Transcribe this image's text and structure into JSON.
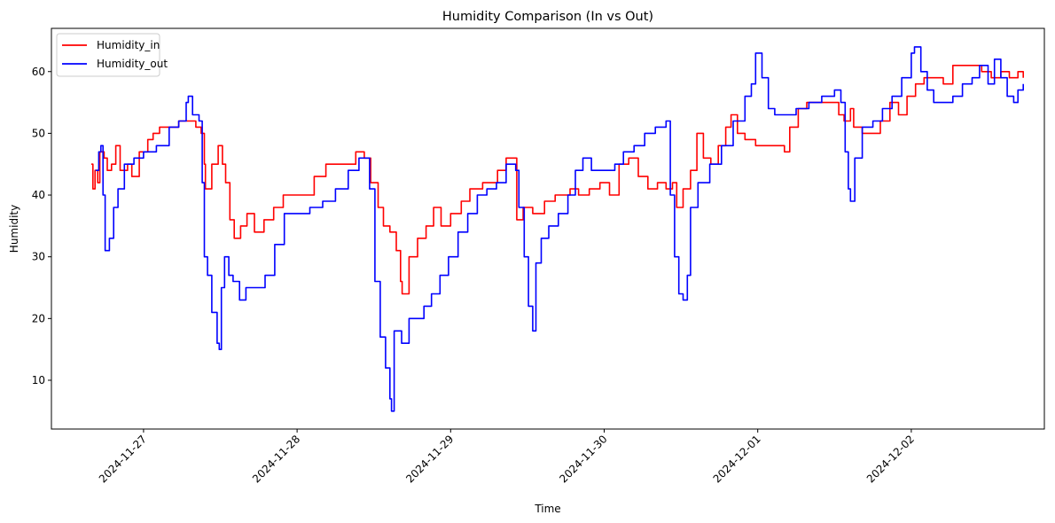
{
  "chart_data": {
    "type": "line",
    "title": "Humidity Comparison (In vs Out)",
    "xlabel": "Time",
    "ylabel": "Humidity",
    "xlim": [
      "2024-11-26T09:36",
      "2024-12-02T20:48"
    ],
    "ylim": [
      2.1,
      67.0
    ],
    "x_ticks": [
      "2024-11-27",
      "2024-11-28",
      "2024-11-29",
      "2024-11-30",
      "2024-12-01",
      "2024-12-02"
    ],
    "y_ticks": [
      10,
      20,
      30,
      40,
      50,
      60
    ],
    "grid": false,
    "legend_position": "top-left",
    "series": [
      {
        "name": "Humidity_in",
        "color": "#ff0000",
        "points": [
          [
            "2024-11-26T15:50",
            45
          ],
          [
            "2024-11-26T16:05",
            41
          ],
          [
            "2024-11-26T16:25",
            44
          ],
          [
            "2024-11-26T16:50",
            42
          ],
          [
            "2024-11-26T17:10",
            47
          ],
          [
            "2024-11-26T17:50",
            46
          ],
          [
            "2024-11-26T18:20",
            44
          ],
          [
            "2024-11-26T19:00",
            45
          ],
          [
            "2024-11-26T19:40",
            48
          ],
          [
            "2024-11-26T20:20",
            44
          ],
          [
            "2024-11-26T21:30",
            45
          ],
          [
            "2024-11-26T22:10",
            43
          ],
          [
            "2024-11-26T23:20",
            47
          ],
          [
            "2024-11-27T00:40",
            49
          ],
          [
            "2024-11-27T01:30",
            50
          ],
          [
            "2024-11-27T02:30",
            51
          ],
          [
            "2024-11-27T04:00",
            51
          ],
          [
            "2024-11-27T05:30",
            52
          ],
          [
            "2024-11-27T07:00",
            52
          ],
          [
            "2024-11-27T08:10",
            51
          ],
          [
            "2024-11-27T09:00",
            50
          ],
          [
            "2024-11-27T09:30",
            45
          ],
          [
            "2024-11-27T09:40",
            41
          ],
          [
            "2024-11-27T10:40",
            45
          ],
          [
            "2024-11-27T11:40",
            48
          ],
          [
            "2024-11-27T12:20",
            45
          ],
          [
            "2024-11-27T12:50",
            42
          ],
          [
            "2024-11-27T13:30",
            36
          ],
          [
            "2024-11-27T14:10",
            33
          ],
          [
            "2024-11-27T15:10",
            35
          ],
          [
            "2024-11-27T16:10",
            37
          ],
          [
            "2024-11-27T17:20",
            34
          ],
          [
            "2024-11-27T18:50",
            36
          ],
          [
            "2024-11-27T20:20",
            38
          ],
          [
            "2024-11-27T21:50",
            40
          ],
          [
            "2024-11-28T00:00",
            40
          ],
          [
            "2024-11-28T02:40",
            43
          ],
          [
            "2024-11-28T04:30",
            45
          ],
          [
            "2024-11-28T07:00",
            45
          ],
          [
            "2024-11-28T09:10",
            47
          ],
          [
            "2024-11-28T10:30",
            46
          ],
          [
            "2024-11-28T11:30",
            42
          ],
          [
            "2024-11-28T12:40",
            38
          ],
          [
            "2024-11-28T13:30",
            35
          ],
          [
            "2024-11-28T14:30",
            34
          ],
          [
            "2024-11-28T15:30",
            31
          ],
          [
            "2024-11-28T16:10",
            26
          ],
          [
            "2024-11-28T16:25",
            24
          ],
          [
            "2024-11-28T17:30",
            30
          ],
          [
            "2024-11-28T18:50",
            33
          ],
          [
            "2024-11-28T20:10",
            35
          ],
          [
            "2024-11-28T21:20",
            38
          ],
          [
            "2024-11-28T22:30",
            35
          ],
          [
            "2024-11-29T00:00",
            37
          ],
          [
            "2024-11-29T01:40",
            39
          ],
          [
            "2024-11-29T03:00",
            41
          ],
          [
            "2024-11-29T05:00",
            42
          ],
          [
            "2024-11-29T07:20",
            44
          ],
          [
            "2024-11-29T08:40",
            46
          ],
          [
            "2024-11-29T10:10",
            46
          ],
          [
            "2024-11-29T10:20",
            36
          ],
          [
            "2024-11-29T11:20",
            38
          ],
          [
            "2024-11-29T12:50",
            37
          ],
          [
            "2024-11-29T14:40",
            39
          ],
          [
            "2024-11-29T16:20",
            40
          ],
          [
            "2024-11-29T18:40",
            41
          ],
          [
            "2024-11-29T20:00",
            40
          ],
          [
            "2024-11-29T21:40",
            41
          ],
          [
            "2024-11-29T23:20",
            42
          ],
          [
            "2024-11-30T00:50",
            40
          ],
          [
            "2024-11-30T02:20",
            45
          ],
          [
            "2024-11-30T03:50",
            46
          ],
          [
            "2024-11-30T05:20",
            43
          ],
          [
            "2024-11-30T06:50",
            41
          ],
          [
            "2024-11-30T08:20",
            42
          ],
          [
            "2024-11-30T09:40",
            41
          ],
          [
            "2024-11-30T10:40",
            42
          ],
          [
            "2024-11-30T11:20",
            38
          ],
          [
            "2024-11-30T12:20",
            41
          ],
          [
            "2024-11-30T13:30",
            44
          ],
          [
            "2024-11-30T14:30",
            50
          ],
          [
            "2024-11-30T15:30",
            46
          ],
          [
            "2024-11-30T16:40",
            45
          ],
          [
            "2024-11-30T17:50",
            48
          ],
          [
            "2024-11-30T19:00",
            51
          ],
          [
            "2024-11-30T19:50",
            53
          ],
          [
            "2024-11-30T20:50",
            50
          ],
          [
            "2024-11-30T22:00",
            49
          ],
          [
            "2024-11-30T23:40",
            48
          ],
          [
            "2024-12-01T01:00",
            48
          ],
          [
            "2024-12-01T03:20",
            48
          ],
          [
            "2024-12-01T04:10",
            47
          ],
          [
            "2024-12-01T05:00",
            51
          ],
          [
            "2024-12-01T06:20",
            54
          ],
          [
            "2024-12-01T07:40",
            55
          ],
          [
            "2024-12-01T09:00",
            55
          ],
          [
            "2024-12-01T11:40",
            55
          ],
          [
            "2024-12-01T12:40",
            53
          ],
          [
            "2024-12-01T13:30",
            52
          ],
          [
            "2024-12-01T14:30",
            54
          ],
          [
            "2024-12-01T15:00",
            51
          ],
          [
            "2024-12-01T16:20",
            50
          ],
          [
            "2024-12-01T17:40",
            50
          ],
          [
            "2024-12-01T19:10",
            52
          ],
          [
            "2024-12-01T20:40",
            55
          ],
          [
            "2024-12-01T22:00",
            53
          ],
          [
            "2024-12-01T23:20",
            56
          ],
          [
            "2024-12-02T00:40",
            58
          ],
          [
            "2024-12-02T02:00",
            59
          ],
          [
            "2024-12-02T03:30",
            59
          ],
          [
            "2024-12-02T05:00",
            58
          ],
          [
            "2024-12-02T06:30",
            61
          ],
          [
            "2024-12-02T08:00",
            61
          ],
          [
            "2024-12-02T09:30",
            61
          ],
          [
            "2024-12-02T11:00",
            60
          ],
          [
            "2024-12-02T12:30",
            59
          ],
          [
            "2024-12-02T14:00",
            60
          ],
          [
            "2024-12-02T15:20",
            59
          ],
          [
            "2024-12-02T16:40",
            60
          ],
          [
            "2024-12-02T17:30",
            59
          ]
        ]
      },
      {
        "name": "Humidity_out",
        "color": "#0000ff",
        "points": [
          [
            "2024-11-26T16:30",
            44
          ],
          [
            "2024-11-26T17:00",
            47
          ],
          [
            "2024-11-26T17:20",
            48
          ],
          [
            "2024-11-26T17:40",
            40
          ],
          [
            "2024-11-26T18:00",
            31
          ],
          [
            "2024-11-26T18:40",
            33
          ],
          [
            "2024-11-26T19:20",
            38
          ],
          [
            "2024-11-26T20:00",
            41
          ],
          [
            "2024-11-26T21:00",
            45
          ],
          [
            "2024-11-26T22:30",
            46
          ],
          [
            "2024-11-27T00:00",
            47
          ],
          [
            "2024-11-27T02:00",
            48
          ],
          [
            "2024-11-27T04:00",
            51
          ],
          [
            "2024-11-27T05:30",
            52
          ],
          [
            "2024-11-27T06:40",
            55
          ],
          [
            "2024-11-27T07:00",
            56
          ],
          [
            "2024-11-27T07:40",
            53
          ],
          [
            "2024-11-27T08:40",
            52
          ],
          [
            "2024-11-27T09:10",
            42
          ],
          [
            "2024-11-27T09:30",
            30
          ],
          [
            "2024-11-27T10:00",
            27
          ],
          [
            "2024-11-27T10:40",
            21
          ],
          [
            "2024-11-27T11:30",
            16
          ],
          [
            "2024-11-27T11:50",
            15
          ],
          [
            "2024-11-27T12:10",
            25
          ],
          [
            "2024-11-27T12:40",
            30
          ],
          [
            "2024-11-27T13:20",
            27
          ],
          [
            "2024-11-27T14:00",
            26
          ],
          [
            "2024-11-27T15:00",
            23
          ],
          [
            "2024-11-27T16:00",
            25
          ],
          [
            "2024-11-27T17:30",
            25
          ],
          [
            "2024-11-27T19:00",
            27
          ],
          [
            "2024-11-27T20:30",
            32
          ],
          [
            "2024-11-27T22:00",
            37
          ],
          [
            "2024-11-28T00:00",
            37
          ],
          [
            "2024-11-28T02:00",
            38
          ],
          [
            "2024-11-28T04:00",
            39
          ],
          [
            "2024-11-28T06:00",
            41
          ],
          [
            "2024-11-28T08:00",
            44
          ],
          [
            "2024-11-28T09:40",
            46
          ],
          [
            "2024-11-28T11:20",
            41
          ],
          [
            "2024-11-28T12:10",
            26
          ],
          [
            "2024-11-28T13:00",
            17
          ],
          [
            "2024-11-28T13:50",
            12
          ],
          [
            "2024-11-28T14:30",
            7
          ],
          [
            "2024-11-28T14:45",
            5
          ],
          [
            "2024-11-28T15:10",
            18
          ],
          [
            "2024-11-28T16:20",
            16
          ],
          [
            "2024-11-28T17:30",
            20
          ],
          [
            "2024-11-28T18:40",
            20
          ],
          [
            "2024-11-28T19:50",
            22
          ],
          [
            "2024-11-28T21:00",
            24
          ],
          [
            "2024-11-28T22:20",
            27
          ],
          [
            "2024-11-28T23:40",
            30
          ],
          [
            "2024-11-29T01:10",
            34
          ],
          [
            "2024-11-29T02:40",
            37
          ],
          [
            "2024-11-29T04:10",
            40
          ],
          [
            "2024-11-29T05:40",
            41
          ],
          [
            "2024-11-29T07:10",
            42
          ],
          [
            "2024-11-29T08:40",
            45
          ],
          [
            "2024-11-29T10:10",
            44
          ],
          [
            "2024-11-29T10:40",
            38
          ],
          [
            "2024-11-29T11:30",
            30
          ],
          [
            "2024-11-29T12:10",
            22
          ],
          [
            "2024-11-29T12:50",
            18
          ],
          [
            "2024-11-29T13:20",
            29
          ],
          [
            "2024-11-29T14:10",
            33
          ],
          [
            "2024-11-29T15:20",
            35
          ],
          [
            "2024-11-29T16:50",
            37
          ],
          [
            "2024-11-29T18:20",
            40
          ],
          [
            "2024-11-29T19:30",
            44
          ],
          [
            "2024-11-29T20:40",
            46
          ],
          [
            "2024-11-29T22:00",
            44
          ],
          [
            "2024-11-30T00:00",
            44
          ],
          [
            "2024-11-30T01:40",
            45
          ],
          [
            "2024-11-30T03:00",
            47
          ],
          [
            "2024-11-30T04:40",
            48
          ],
          [
            "2024-11-30T06:20",
            50
          ],
          [
            "2024-11-30T08:00",
            51
          ],
          [
            "2024-11-30T09:40",
            52
          ],
          [
            "2024-11-30T10:20",
            40
          ],
          [
            "2024-11-30T11:00",
            30
          ],
          [
            "2024-11-30T11:40",
            24
          ],
          [
            "2024-11-30T12:20",
            23
          ],
          [
            "2024-11-30T13:00",
            27
          ],
          [
            "2024-11-30T13:30",
            38
          ],
          [
            "2024-11-30T14:40",
            42
          ],
          [
            "2024-11-30T16:30",
            45
          ],
          [
            "2024-11-30T18:20",
            48
          ],
          [
            "2024-11-30T20:10",
            52
          ],
          [
            "2024-11-30T22:00",
            56
          ],
          [
            "2024-11-30T23:00",
            58
          ],
          [
            "2024-11-30T23:40",
            63
          ],
          [
            "2024-12-01T00:40",
            59
          ],
          [
            "2024-12-01T01:40",
            54
          ],
          [
            "2024-12-01T02:40",
            53
          ],
          [
            "2024-12-01T04:00",
            53
          ],
          [
            "2024-12-01T06:00",
            54
          ],
          [
            "2024-12-01T08:00",
            55
          ],
          [
            "2024-12-01T10:00",
            56
          ],
          [
            "2024-12-01T12:00",
            57
          ],
          [
            "2024-12-01T13:00",
            55
          ],
          [
            "2024-12-01T13:40",
            47
          ],
          [
            "2024-12-01T14:10",
            41
          ],
          [
            "2024-12-01T14:30",
            39
          ],
          [
            "2024-12-01T15:10",
            46
          ],
          [
            "2024-12-01T16:20",
            51
          ],
          [
            "2024-12-01T18:00",
            52
          ],
          [
            "2024-12-01T19:30",
            54
          ],
          [
            "2024-12-01T21:00",
            56
          ],
          [
            "2024-12-01T22:30",
            59
          ],
          [
            "2024-12-02T00:00",
            63
          ],
          [
            "2024-12-02T00:30",
            64
          ],
          [
            "2024-12-02T01:30",
            60
          ],
          [
            "2024-12-02T02:30",
            57
          ],
          [
            "2024-12-02T03:30",
            55
          ],
          [
            "2024-12-02T05:00",
            55
          ],
          [
            "2024-12-02T06:30",
            56
          ],
          [
            "2024-12-02T08:00",
            58
          ],
          [
            "2024-12-02T09:30",
            59
          ],
          [
            "2024-12-02T10:40",
            61
          ],
          [
            "2024-12-02T12:00",
            58
          ],
          [
            "2024-12-02T13:00",
            62
          ],
          [
            "2024-12-02T14:00",
            59
          ],
          [
            "2024-12-02T15:00",
            56
          ],
          [
            "2024-12-02T16:00",
            55
          ],
          [
            "2024-12-02T16:40",
            57
          ],
          [
            "2024-12-02T17:30",
            58
          ]
        ]
      }
    ]
  }
}
